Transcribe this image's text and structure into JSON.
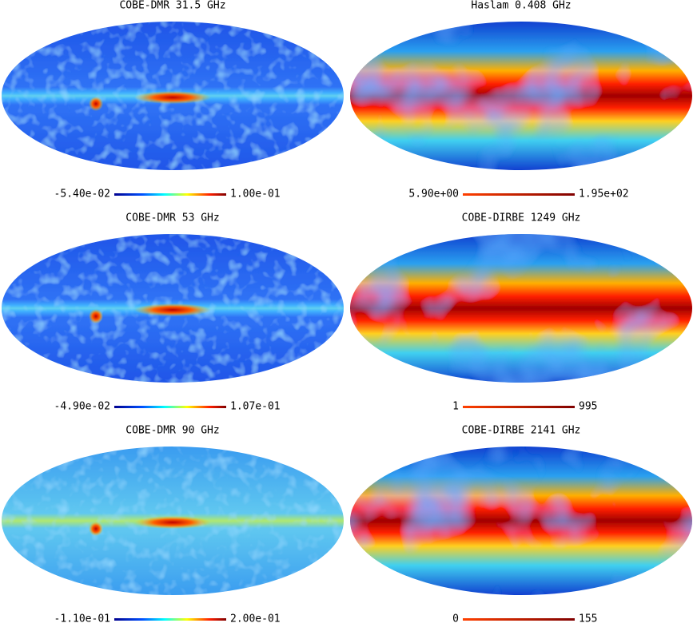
{
  "panels": [
    {
      "title": "COBE-DMR 31.5 GHz",
      "min_label": "-5.40e-02",
      "max_label": "1.00e-01"
    },
    {
      "title": "Haslam 0.408 GHz",
      "min_label": "5.90e+00",
      "max_label": "1.95e+02"
    },
    {
      "title": "COBE-DMR 53 GHz",
      "min_label": "-4.90e-02",
      "max_label": "1.07e-01"
    },
    {
      "title": "COBE-DIRBE 1249 GHz",
      "min_label": "1",
      "max_label": "995"
    },
    {
      "title": "COBE-DMR 90 GHz",
      "min_label": "-1.10e-01",
      "max_label": "2.00e-01"
    },
    {
      "title": "COBE-DIRBE 2141 GHz",
      "min_label": "0",
      "max_label": "155"
    }
  ]
}
